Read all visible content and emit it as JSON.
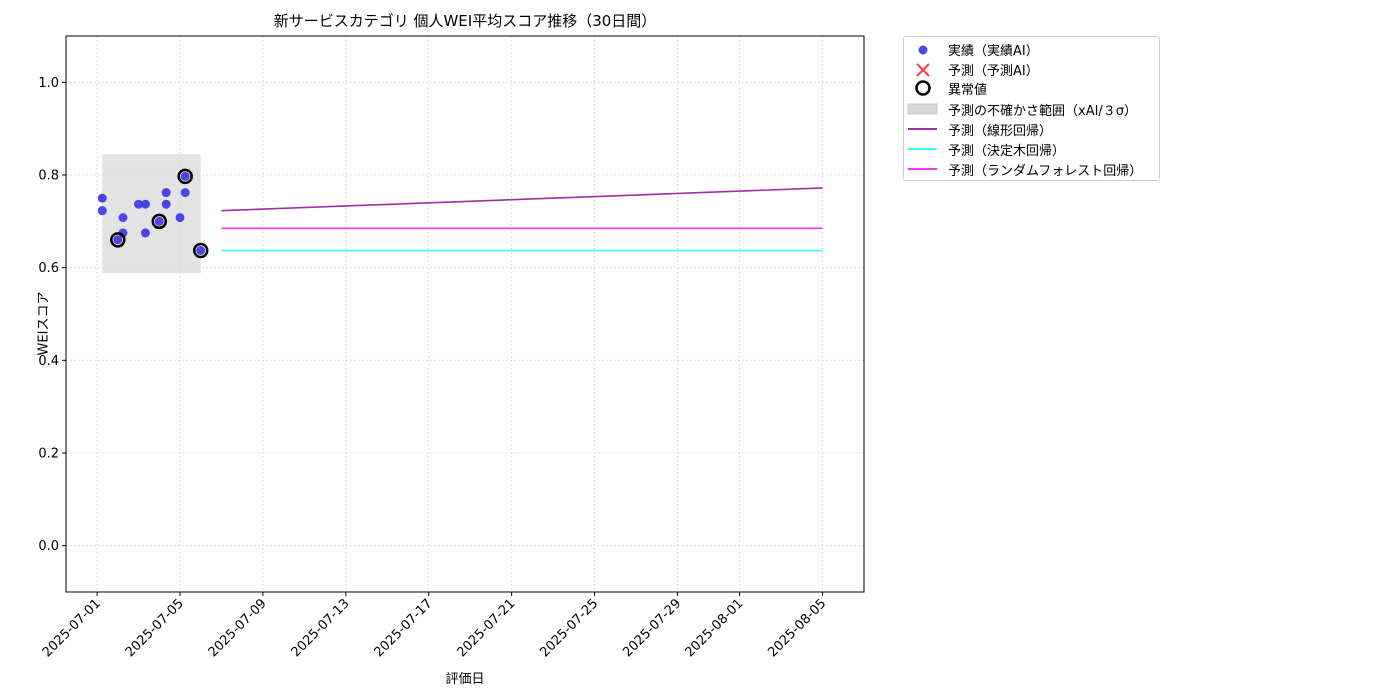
{
  "chart_data": {
    "type": "scatter",
    "title": "新サービスカテゴリ 個人WEI平均スコア推移（30日間）",
    "xlabel": "評価日",
    "ylabel": "WEIスコア",
    "ylim": [
      -0.1,
      1.1
    ],
    "xlim": [
      "2025-06-29 12:00",
      "2025-08-07 00:00"
    ],
    "yticks": [
      "0.0",
      "0.2",
      "0.4",
      "0.6",
      "0.8",
      "1.0"
    ],
    "xticks": [
      "2025-07-01",
      "2025-07-05",
      "2025-07-09",
      "2025-07-13",
      "2025-07-17",
      "2025-07-21",
      "2025-07-25",
      "2025-07-29",
      "2025-08-01",
      "2025-08-05"
    ],
    "grid": true,
    "legend_position": "outside-top-right",
    "actual": {
      "name": "実績（実績AI）",
      "color": "#3a33e0",
      "points": [
        {
          "x": "2025-07-01 06:00",
          "y": 0.75
        },
        {
          "x": "2025-07-01 06:00",
          "y": 0.723
        },
        {
          "x": "2025-07-02 00:00",
          "y": 0.66
        },
        {
          "x": "2025-07-02 06:00",
          "y": 0.708
        },
        {
          "x": "2025-07-02 06:00",
          "y": 0.675
        },
        {
          "x": "2025-07-03 00:00",
          "y": 0.737
        },
        {
          "x": "2025-07-03 08:00",
          "y": 0.737
        },
        {
          "x": "2025-07-03 08:00",
          "y": 0.675
        },
        {
          "x": "2025-07-04 00:00",
          "y": 0.7
        },
        {
          "x": "2025-07-04 08:00",
          "y": 0.762
        },
        {
          "x": "2025-07-04 08:00",
          "y": 0.737
        },
        {
          "x": "2025-07-05 00:00",
          "y": 0.708
        },
        {
          "x": "2025-07-05 06:00",
          "y": 0.797
        },
        {
          "x": "2025-07-05 06:00",
          "y": 0.762
        },
        {
          "x": "2025-07-06 00:00",
          "y": 0.637
        }
      ]
    },
    "predicted_ai": {
      "name": "予測（予測AI）",
      "color": "#ff3b3b",
      "points": []
    },
    "anomalies": {
      "name": "異常値",
      "points": [
        {
          "x": "2025-07-02 00:00",
          "y": 0.66
        },
        {
          "x": "2025-07-04 00:00",
          "y": 0.7
        },
        {
          "x": "2025-07-05 06:00",
          "y": 0.797
        },
        {
          "x": "2025-07-06 00:00",
          "y": 0.637
        }
      ]
    },
    "uncertainty_band": {
      "name": "予測の不確かさ範囲（xAI/３σ）",
      "color": "#d9d9d9",
      "x_start": "2025-07-01 06:00",
      "x_end": "2025-07-06 00:00",
      "y_low": 0.588,
      "y_high": 0.845
    },
    "series": [
      {
        "name": "予測（線形回帰）",
        "color": "#9b30a0",
        "x": [
          "2025-07-07",
          "2025-08-05"
        ],
        "values": [
          0.723,
          0.772
        ]
      },
      {
        "name": "予測（決定木回帰）",
        "color": "#33ffff",
        "x": [
          "2025-07-07",
          "2025-08-05"
        ],
        "values": [
          0.637,
          0.637
        ]
      },
      {
        "name": "予測（ランダムフォレスト回帰）",
        "color": "#ff33ff",
        "x": [
          "2025-07-07",
          "2025-08-05"
        ],
        "values": [
          0.685,
          0.685
        ]
      }
    ]
  }
}
